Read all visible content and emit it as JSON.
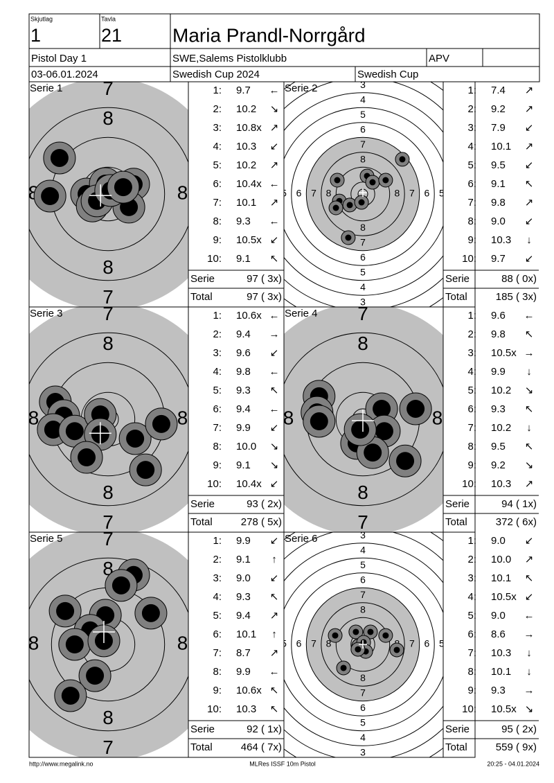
{
  "header": {
    "squad_label": "Skjutlag",
    "squad": "1",
    "lane_label": "Tavla",
    "lane": "21",
    "name": "Maria Prandl-Norrgård",
    "event": "Pistol Day 1",
    "club": "SWE,Salems Pistolklubb",
    "class": "APV",
    "date": "03-06.01.2024",
    "competition": "Swedish Cup 2024",
    "cup": "Swedish Cup"
  },
  "targets": {
    "zoom": {
      "labels": [
        7,
        8
      ]
    },
    "full": {
      "labels": [
        3,
        4,
        5,
        6,
        7,
        8
      ]
    }
  },
  "shot_labels": [
    "1:",
    "2:",
    "3:",
    "4:",
    "5:",
    "6:",
    "7:",
    "8:",
    "9:",
    "10:"
  ],
  "row_labels": {
    "series": "Serie",
    "total": "Total"
  },
  "series": [
    {
      "title": "Serie 1",
      "view": "zoom",
      "shots": [
        {
          "score": "9.7",
          "dir": "←"
        },
        {
          "score": "10.2",
          "dir": "↘"
        },
        {
          "score": "10.8x",
          "dir": "↗"
        },
        {
          "score": "10.3",
          "dir": "↙"
        },
        {
          "score": "10.2",
          "dir": "↗"
        },
        {
          "score": "10.4x",
          "dir": "←"
        },
        {
          "score": "10.1",
          "dir": "↗"
        },
        {
          "score": "9.3",
          "dir": "←"
        },
        {
          "score": "10.5x",
          "dir": "↙"
        },
        {
          "score": "9.1",
          "dir": "↖"
        }
      ],
      "hits": [
        [
          -1.63,
          -1.21
        ],
        [
          -1.95,
          0.07
        ],
        [
          -0.72,
          0
        ],
        [
          -0.53,
          0.4
        ],
        [
          -0.09,
          -0.35
        ],
        [
          0.86,
          -0.33
        ],
        [
          0.7,
          0.44
        ],
        [
          -0.37,
          0.23
        ],
        [
          0.09,
          -0.12
        ],
        [
          0.51,
          -0.23
        ]
      ],
      "mpi": [
        -0.25,
        0.05
      ],
      "series_score": "97 ( 3x)",
      "total_score": "97 ( 3x)"
    },
    {
      "title": "Serie 2",
      "view": "full",
      "shots": [
        {
          "score": "7.4",
          "dir": "↗"
        },
        {
          "score": "9.2",
          "dir": "↗"
        },
        {
          "score": "7.9",
          "dir": "↙"
        },
        {
          "score": "10.1",
          "dir": "↗"
        },
        {
          "score": "9.5",
          "dir": "↙"
        },
        {
          "score": "9.1",
          "dir": "↖"
        },
        {
          "score": "9.8",
          "dir": "↗"
        },
        {
          "score": "9.0",
          "dir": "↙"
        },
        {
          "score": "10.3",
          "dir": "↓"
        },
        {
          "score": "9.7",
          "dir": "↙"
        }
      ],
      "hits": [
        [
          2.65,
          -2.33
        ],
        [
          -1.72,
          -0.93
        ],
        [
          0.28,
          -1.21
        ],
        [
          0.65,
          -0.79
        ],
        [
          1.53,
          -0.93
        ],
        [
          -1.58,
          0.47
        ],
        [
          -1.81,
          0.93
        ],
        [
          -0.88,
          0.74
        ],
        [
          -0.09,
          0.56
        ],
        [
          -0.98,
          2.93
        ]
      ],
      "mpi": [
        0,
        -0.09
      ],
      "series_score": "88 ( 0x)",
      "total_score": "185 ( 3x)"
    },
    {
      "title": "Serie 3",
      "view": "zoom",
      "shots": [
        {
          "score": "10.6x",
          "dir": "←"
        },
        {
          "score": "9.4",
          "dir": "→"
        },
        {
          "score": "9.6",
          "dir": "↙"
        },
        {
          "score": "9.8",
          "dir": "←"
        },
        {
          "score": "9.3",
          "dir": "↖"
        },
        {
          "score": "9.4",
          "dir": "←"
        },
        {
          "score": "9.9",
          "dir": "↙"
        },
        {
          "score": "10.0",
          "dir": "↘"
        },
        {
          "score": "9.1",
          "dir": "↘"
        },
        {
          "score": "10.4x",
          "dir": "↙"
        }
      ],
      "hits": [
        [
          -1.77,
          -0.58
        ],
        [
          -1.49,
          -0.12
        ],
        [
          -1.84,
          0.35
        ],
        [
          -1.12,
          0.4
        ],
        [
          -0.26,
          -0.16
        ],
        [
          -0.26,
          0.51
        ],
        [
          0.91,
          0.65
        ],
        [
          1.79,
          0.16
        ],
        [
          -0.72,
          1.28
        ],
        [
          1.26,
          1.7
        ]
      ],
      "mpi": [
        -0.26,
        0.47
      ],
      "series_score": "93 ( 2x)",
      "total_score": "278 ( 5x)"
    },
    {
      "title": "Serie 4",
      "view": "zoom",
      "shots": [
        {
          "score": "9.6",
          "dir": "←"
        },
        {
          "score": "9.8",
          "dir": "↖"
        },
        {
          "score": "10.5x",
          "dir": "→"
        },
        {
          "score": "9.9",
          "dir": "↓"
        },
        {
          "score": "10.2",
          "dir": "↘"
        },
        {
          "score": "9.3",
          "dir": "↖"
        },
        {
          "score": "10.2",
          "dir": "↓"
        },
        {
          "score": "9.5",
          "dir": "↖"
        },
        {
          "score": "9.2",
          "dir": "↘"
        },
        {
          "score": "10.3",
          "dir": "↗"
        }
      ],
      "hits": [
        [
          -1.47,
          -0.77
        ],
        [
          -1.54,
          -0.23
        ],
        [
          -1.47,
          0.07
        ],
        [
          0.63,
          -0.35
        ],
        [
          1.77,
          -0.35
        ],
        [
          0.72,
          0.4
        ],
        [
          -0.21,
          0.81
        ],
        [
          0.33,
          1.12
        ],
        [
          1.42,
          1.4
        ],
        [
          -0.09,
          0.35
        ]
      ],
      "mpi": [
        0,
        0.05
      ],
      "series_score": "94 ( 1x)",
      "total_score": "372 ( 6x)"
    },
    {
      "title": "Serie 5",
      "view": "zoom",
      "shots": [
        {
          "score": "9.9",
          "dir": "↙"
        },
        {
          "score": "9.1",
          "dir": "↑"
        },
        {
          "score": "9.0",
          "dir": "↙"
        },
        {
          "score": "9.3",
          "dir": "↖"
        },
        {
          "score": "9.4",
          "dir": "↗"
        },
        {
          "score": "10.1",
          "dir": "↑"
        },
        {
          "score": "8.7",
          "dir": "↗"
        },
        {
          "score": "9.9",
          "dir": "←"
        },
        {
          "score": "10.6x",
          "dir": "↖"
        },
        {
          "score": "10.3",
          "dir": "↖"
        }
      ],
      "hits": [
        [
          0.86,
          -2.33
        ],
        [
          0.44,
          -1.98
        ],
        [
          -1.44,
          -1.12
        ],
        [
          1.44,
          -1.05
        ],
        [
          -0.09,
          -0.98
        ],
        [
          -0.6,
          -0.47
        ],
        [
          -1.12,
          0
        ],
        [
          -0.14,
          -0.12
        ],
        [
          -0.44,
          1.05
        ],
        [
          -1.26,
          1.72
        ]
      ],
      "mpi": [
        -0.14,
        -0.42
      ],
      "series_score": "92 ( 1x)",
      "total_score": "464 ( 7x)"
    },
    {
      "title": "Serie 6",
      "view": "full",
      "shots": [
        {
          "score": "9.0",
          "dir": "↙"
        },
        {
          "score": "10.0",
          "dir": "↗"
        },
        {
          "score": "10.1",
          "dir": "↖"
        },
        {
          "score": "10.5x",
          "dir": "↙"
        },
        {
          "score": "9.0",
          "dir": "←"
        },
        {
          "score": "8.6",
          "dir": "→"
        },
        {
          "score": "10.3",
          "dir": "↓"
        },
        {
          "score": "10.1",
          "dir": "↓"
        },
        {
          "score": "9.3",
          "dir": "→"
        },
        {
          "score": "10.5x",
          "dir": "↘"
        }
      ],
      "hits": [
        [
          -1.86,
          -0.6
        ],
        [
          -0.47,
          -0.84
        ],
        [
          0.51,
          -0.84
        ],
        [
          1.53,
          -0.6
        ],
        [
          -0.28,
          0.09
        ],
        [
          0.05,
          -0.14
        ],
        [
          0.19,
          0.47
        ],
        [
          -0.33,
          0.33
        ],
        [
          2.28,
          0.37
        ],
        [
          -1.3,
          1.58
        ]
      ],
      "mpi": [
        0,
        0
      ],
      "series_score": "95 ( 2x)",
      "total_score": "559 ( 9x)"
    }
  ],
  "footer": {
    "left": "http://www.megalink.no",
    "center": "MLRes ISSF 10m Pistol",
    "right": "20:25 - 04.01.2024"
  }
}
